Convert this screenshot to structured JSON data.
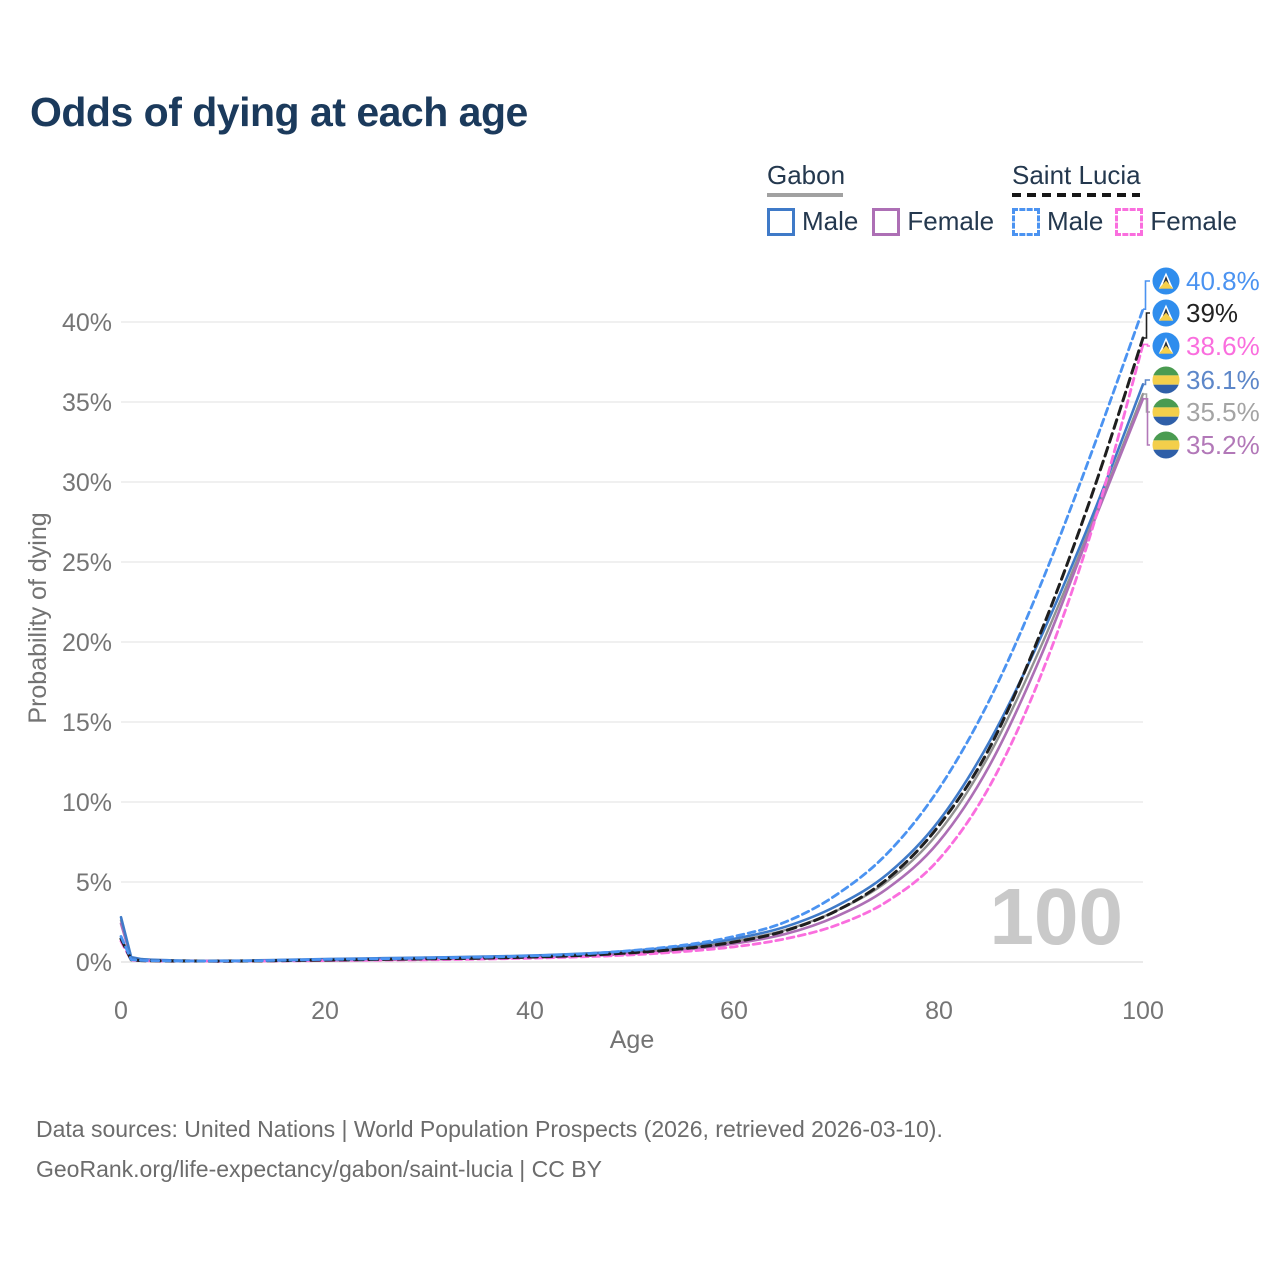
{
  "title": "Odds of dying at each age",
  "legend": {
    "groups": [
      {
        "label": "Gabon",
        "style": "solid",
        "items": [
          {
            "label": "Male"
          },
          {
            "label": "Female"
          }
        ]
      },
      {
        "label": "Saint Lucia",
        "style": "dashed",
        "items": [
          {
            "label": "Male"
          },
          {
            "label": "Female"
          }
        ]
      }
    ]
  },
  "watermark": "100",
  "footer": {
    "line1": "Data sources: United Nations | World Population Prospects (2026, retrieved 2026-03-10).",
    "line2": "GeoRank.org/life-expectancy/gabon/saint-lucia | CC BY"
  },
  "colors": {
    "title_text": "#1b3a5c",
    "legend_text": "#24384e",
    "axis_text": "#757575",
    "grid_line": "#ebebeb",
    "baseline": "#e3e3e3",
    "watermark": "#c9c9c9",
    "footer_text": "#6c6c6c",
    "legend_underline_gabon": "#a1a1a1",
    "legend_underline_saint_lucia": "#161616",
    "gabon_green": "#4a9b51",
    "gabon_yellow": "#f3cf4b",
    "gabon_blue": "#2f5fa8",
    "sl_blue": "#2f8ded",
    "sl_white": "#ffffff",
    "sl_dark": "#2c3038",
    "sl_yellow": "#f6d04b"
  },
  "chart_data": {
    "type": "line",
    "title": "Odds of dying at each age",
    "xlabel": "Age",
    "ylabel": "Probability of dying",
    "xlim": [
      0,
      100
    ],
    "ylim_percent": [
      0,
      42
    ],
    "grid": "horizontal",
    "legend_position": "top-right",
    "xtick_labels": [
      "0",
      "20",
      "40",
      "60",
      "80",
      "100"
    ],
    "ytick_labels": [
      "0%",
      "5%",
      "10%",
      "15%",
      "20%",
      "25%",
      "30%",
      "35%",
      "40%"
    ],
    "x": [
      0,
      1,
      2,
      5,
      10,
      15,
      20,
      25,
      30,
      35,
      40,
      45,
      50,
      55,
      60,
      65,
      70,
      75,
      80,
      85,
      90,
      95,
      100
    ],
    "series": [
      {
        "name": "Saint Lucia Male",
        "country": "Saint Lucia",
        "sex": "Male",
        "dashed": true,
        "color": "#4b93f1",
        "label_color": "#4b93f1",
        "flag": "saint-lucia",
        "end_label": "40.8%",
        "values": [
          1.6,
          0.15,
          0.1,
          0.07,
          0.06,
          0.1,
          0.16,
          0.2,
          0.25,
          0.3,
          0.38,
          0.5,
          0.72,
          1.05,
          1.6,
          2.5,
          4.2,
          6.8,
          10.8,
          16.4,
          23.6,
          31.9,
          40.8
        ]
      },
      {
        "name": "Saint Lucia Total",
        "country": "Saint Lucia",
        "sex": "Both",
        "dashed": true,
        "color": "#1f1f1f",
        "label_color": "#222222",
        "flag": "saint-lucia",
        "end_label": "39%",
        "values": [
          1.45,
          0.14,
          0.09,
          0.06,
          0.05,
          0.08,
          0.12,
          0.16,
          0.2,
          0.24,
          0.31,
          0.41,
          0.58,
          0.83,
          1.25,
          1.95,
          3.2,
          5.2,
          8.5,
          13.4,
          20.6,
          29.2,
          39.0
        ]
      },
      {
        "name": "Saint Lucia Female",
        "country": "Saint Lucia",
        "sex": "Female",
        "dashed": true,
        "color": "#fa6ede",
        "label_color": "#fa6ede",
        "flag": "saint-lucia",
        "end_label": "38.6%",
        "values": [
          1.3,
          0.12,
          0.08,
          0.05,
          0.04,
          0.06,
          0.09,
          0.11,
          0.14,
          0.18,
          0.24,
          0.32,
          0.45,
          0.65,
          0.95,
          1.45,
          2.3,
          3.8,
          6.4,
          11.0,
          17.9,
          27.0,
          38.6
        ]
      },
      {
        "name": "Gabon Male",
        "country": "Gabon",
        "sex": "Male",
        "dashed": false,
        "color": "#3f7ac8",
        "label_color": "#5d87c9",
        "flag": "gabon",
        "end_label": "36.1%",
        "values": [
          2.8,
          0.3,
          0.18,
          0.1,
          0.08,
          0.12,
          0.18,
          0.23,
          0.28,
          0.33,
          0.4,
          0.52,
          0.7,
          1.0,
          1.45,
          2.2,
          3.5,
          5.5,
          8.8,
          13.8,
          20.3,
          27.8,
          36.1
        ]
      },
      {
        "name": "Gabon Total",
        "country": "Gabon",
        "sex": "Both",
        "dashed": false,
        "color": "#929292",
        "label_color": "#a4a4a4",
        "flag": "gabon",
        "end_label": "35.5%",
        "values": [
          2.6,
          0.28,
          0.16,
          0.09,
          0.07,
          0.1,
          0.14,
          0.18,
          0.22,
          0.27,
          0.34,
          0.44,
          0.6,
          0.87,
          1.3,
          2.0,
          3.2,
          5.05,
          8.1,
          13.0,
          19.7,
          27.4,
          35.5
        ]
      },
      {
        "name": "Gabon Female",
        "country": "Gabon",
        "sex": "Female",
        "dashed": false,
        "color": "#ad6fb5",
        "label_color": "#b278b8",
        "flag": "gabon",
        "end_label": "35.2%",
        "values": [
          2.4,
          0.25,
          0.15,
          0.08,
          0.06,
          0.08,
          0.1,
          0.13,
          0.17,
          0.22,
          0.28,
          0.37,
          0.52,
          0.75,
          1.15,
          1.75,
          2.85,
          4.6,
          7.5,
          12.3,
          19.1,
          27.2,
          35.2
        ]
      }
    ]
  }
}
